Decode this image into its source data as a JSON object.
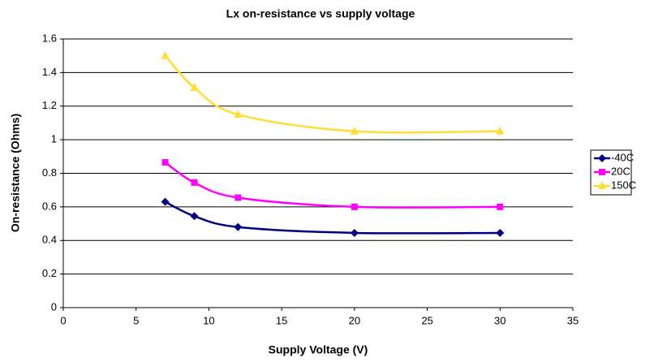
{
  "chart_data": {
    "type": "line",
    "title": "Lx on-resistance vs supply voltage",
    "xlabel": "Supply Voltage (V)",
    "ylabel": "On-resistance (Ohms)",
    "x": [
      7,
      9,
      12,
      20,
      30
    ],
    "series": [
      {
        "name": "-40C",
        "color": "#000080",
        "marker": "diamond",
        "values": [
          0.63,
          0.545,
          0.48,
          0.445,
          0.445
        ]
      },
      {
        "name": "20C",
        "color": "#ff00ff",
        "marker": "square",
        "values": [
          0.865,
          0.745,
          0.655,
          0.6,
          0.6
        ]
      },
      {
        "name": "150C",
        "color": "#ffdd33",
        "marker": "triangle",
        "values": [
          1.5,
          1.31,
          1.15,
          1.05,
          1.05
        ]
      }
    ],
    "xlim": [
      0,
      35
    ],
    "xticks": [
      0,
      5,
      10,
      15,
      20,
      25,
      30,
      35
    ],
    "ylim": [
      0,
      1.6
    ],
    "yticks": [
      0,
      0.2,
      0.4,
      0.6,
      0.8,
      1,
      1.2,
      1.4,
      1.6
    ],
    "grid": true,
    "legend": "right"
  }
}
